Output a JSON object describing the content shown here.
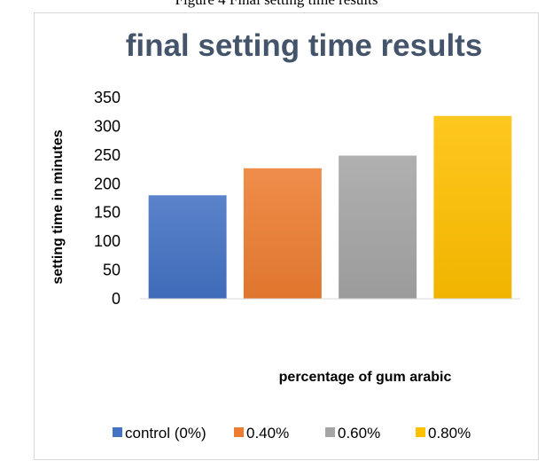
{
  "caption": "Figure 4 Final setting time results",
  "chart_data": {
    "type": "bar",
    "title": "final setting time results",
    "xlabel": "percentage of gum arabic",
    "ylabel": "setting time in minutes",
    "ylim": [
      0,
      350
    ],
    "yticks": [
      0,
      50,
      100,
      150,
      200,
      250,
      300,
      350
    ],
    "grid": false,
    "legend_position": "bottom",
    "series": [
      {
        "name": "control (0%)",
        "value": 180,
        "color": "#4472c4"
      },
      {
        "name": "0.40%",
        "value": 227,
        "color": "#ed7d31"
      },
      {
        "name": "0.60%",
        "value": 249,
        "color": "#a5a5a5"
      },
      {
        "name": "0.80%",
        "value": 318,
        "color": "#ffc000"
      }
    ]
  }
}
